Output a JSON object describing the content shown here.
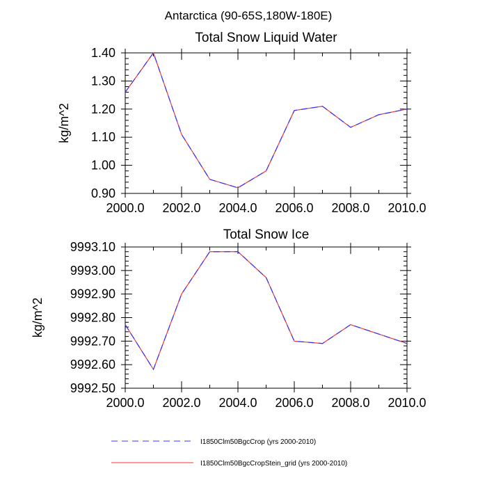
{
  "figure": {
    "main_title": "Antarctica (90-65S,180W-180E)"
  },
  "legend": {
    "entries": [
      {
        "label": "I1850Clm50BgcCrop (yrs 2000-2010)",
        "color": "#3333ff",
        "dash": true
      },
      {
        "label": "I1850Clm50BgcCropStein_grid (yrs 2000-2010)",
        "color": "#ff3333",
        "dash": false
      }
    ]
  },
  "chart_data": [
    {
      "type": "line",
      "title": "Total Snow Liquid Water",
      "xlabel": "",
      "ylabel": "kg/m^2",
      "xlim": [
        2000,
        2010
      ],
      "ylim": [
        0.9,
        1.4
      ],
      "xticks": [
        2000,
        2002,
        2004,
        2006,
        2008,
        2010
      ],
      "xticklabels": [
        "2000.0",
        "2002.0",
        "2004.0",
        "2006.0",
        "2008.0",
        "2010.0"
      ],
      "yticks": [
        0.9,
        1.0,
        1.1,
        1.2,
        1.3,
        1.4
      ],
      "yticklabels": [
        "0.90",
        "1.00",
        "1.10",
        "1.20",
        "1.30",
        "1.40"
      ],
      "x": [
        2000,
        2001,
        2002,
        2003,
        2004,
        2005,
        2006,
        2007,
        2008,
        2009,
        2010
      ],
      "series": [
        {
          "name": "I1850Clm50BgcCrop (yrs 2000-2010)",
          "color": "#3333ff",
          "dash": true,
          "values": [
            1.26,
            1.4,
            1.11,
            0.95,
            0.92,
            0.98,
            1.195,
            1.21,
            1.135,
            1.18,
            1.2
          ]
        },
        {
          "name": "I1850Clm50BgcCropStein_grid (yrs 2000-2010)",
          "color": "#ff3333",
          "dash": false,
          "values": [
            1.26,
            1.4,
            1.11,
            0.95,
            0.92,
            0.98,
            1.195,
            1.21,
            1.135,
            1.18,
            1.2
          ]
        }
      ]
    },
    {
      "type": "line",
      "title": "Total Snow Ice",
      "xlabel": "",
      "ylabel": "kg/m^2",
      "xlim": [
        2000,
        2010
      ],
      "ylim": [
        9992.5,
        9993.1
      ],
      "xticks": [
        2000,
        2002,
        2004,
        2006,
        2008,
        2010
      ],
      "xticklabels": [
        "2000.0",
        "2002.0",
        "2004.0",
        "2006.0",
        "2008.0",
        "2010.0"
      ],
      "yticks": [
        9992.5,
        9992.6,
        9992.7,
        9992.8,
        9992.9,
        9993.0,
        9993.1
      ],
      "yticklabels": [
        "9992.50",
        "9992.60",
        "9992.70",
        "9992.80",
        "9992.90",
        "9993.00",
        "9993.10"
      ],
      "x": [
        2000,
        2001,
        2002,
        2003,
        2004,
        2005,
        2006,
        2007,
        2008,
        2009,
        2010
      ],
      "series": [
        {
          "name": "I1850Clm50BgcCrop (yrs 2000-2010)",
          "color": "#3333ff",
          "dash": true,
          "values": [
            9992.77,
            9992.58,
            9992.9,
            9993.08,
            9993.08,
            9992.97,
            9992.7,
            9992.69,
            9992.77,
            9992.73,
            9992.69
          ]
        },
        {
          "name": "I1850Clm50BgcCropStein_grid (yrs 2000-2010)",
          "color": "#ff3333",
          "dash": false,
          "values": [
            9992.77,
            9992.58,
            9992.9,
            9993.08,
            9993.08,
            9992.97,
            9992.7,
            9992.69,
            9992.77,
            9992.73,
            9992.69
          ]
        }
      ]
    }
  ]
}
